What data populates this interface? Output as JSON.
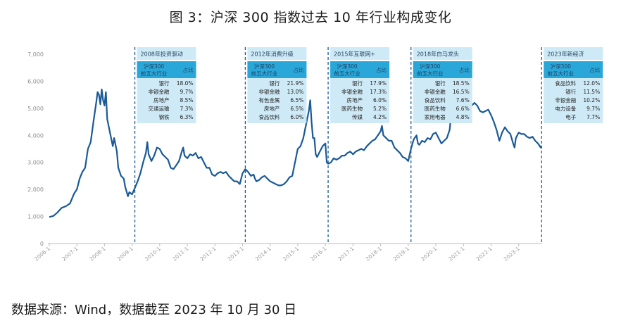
{
  "title": "图 3：沪深 300 指数过去 10 年行业构成变化",
  "source": "数据来源：Wind，数据截至 2023 年 10 月 30 日",
  "colors": {
    "line": "#1a5a96",
    "box_fill": "#cfeaf7",
    "box_header": "#2aa7d9",
    "divider": "#1a5a96"
  },
  "chart_data": {
    "type": "line",
    "y_ticks": [
      "0",
      "1,000",
      "2,000",
      "3,000",
      "4,000",
      "5,000",
      "6,000",
      "7,000"
    ],
    "ylim": [
      0,
      7000
    ],
    "x_ticks": [
      "2006-1",
      "2007-1",
      "2008-1",
      "2009-1",
      "2010-1",
      "2011-1",
      "2012-1",
      "2013-1",
      "2014-1",
      "2015-1",
      "2016-1",
      "2017-1",
      "2018-1",
      "2019-1",
      "2020-1",
      "2021-1",
      "2022-1",
      "2023-1"
    ],
    "xlim": [
      2005.95,
      2023.85
    ],
    "series": [
      {
        "points": [
          [
            2006.0,
            980
          ],
          [
            2006.15,
            1020
          ],
          [
            2006.3,
            1150
          ],
          [
            2006.45,
            1320
          ],
          [
            2006.6,
            1380
          ],
          [
            2006.75,
            1480
          ],
          [
            2006.9,
            1850
          ],
          [
            2007.0,
            2000
          ],
          [
            2007.1,
            2400
          ],
          [
            2007.2,
            2650
          ],
          [
            2007.3,
            2800
          ],
          [
            2007.4,
            3500
          ],
          [
            2007.5,
            3750
          ],
          [
            2007.6,
            4500
          ],
          [
            2007.7,
            5200
          ],
          [
            2007.75,
            5600
          ],
          [
            2007.8,
            5500
          ],
          [
            2007.85,
            5150
          ],
          [
            2007.9,
            5700
          ],
          [
            2007.95,
            5300
          ],
          [
            2008.0,
            5100
          ],
          [
            2008.05,
            5600
          ],
          [
            2008.1,
            4600
          ],
          [
            2008.2,
            4100
          ],
          [
            2008.3,
            3600
          ],
          [
            2008.35,
            3900
          ],
          [
            2008.45,
            3400
          ],
          [
            2008.5,
            2800
          ],
          [
            2008.6,
            2500
          ],
          [
            2008.7,
            2400
          ],
          [
            2008.75,
            2100
          ],
          [
            2008.85,
            1750
          ],
          [
            2008.9,
            1900
          ],
          [
            2009.0,
            1820
          ],
          [
            2009.1,
            2050
          ],
          [
            2009.2,
            2300
          ],
          [
            2009.3,
            2600
          ],
          [
            2009.4,
            3000
          ],
          [
            2009.5,
            3350
          ],
          [
            2009.55,
            3750
          ],
          [
            2009.6,
            3300
          ],
          [
            2009.7,
            3050
          ],
          [
            2009.8,
            3250
          ],
          [
            2009.9,
            3550
          ],
          [
            2010.0,
            3500
          ],
          [
            2010.1,
            3300
          ],
          [
            2010.2,
            3200
          ],
          [
            2010.3,
            3100
          ],
          [
            2010.4,
            2800
          ],
          [
            2010.5,
            2750
          ],
          [
            2010.6,
            2900
          ],
          [
            2010.7,
            3050
          ],
          [
            2010.8,
            3400
          ],
          [
            2010.85,
            3550
          ],
          [
            2010.9,
            3250
          ],
          [
            2011.0,
            3150
          ],
          [
            2011.1,
            3300
          ],
          [
            2011.2,
            3250
          ],
          [
            2011.3,
            3350
          ],
          [
            2011.4,
            3150
          ],
          [
            2011.5,
            3200
          ],
          [
            2011.6,
            3000
          ],
          [
            2011.7,
            2800
          ],
          [
            2011.8,
            2800
          ],
          [
            2011.9,
            2550
          ],
          [
            2012.0,
            2500
          ],
          [
            2012.1,
            2600
          ],
          [
            2012.2,
            2650
          ],
          [
            2012.3,
            2600
          ],
          [
            2012.4,
            2650
          ],
          [
            2012.5,
            2500
          ],
          [
            2012.6,
            2400
          ],
          [
            2012.7,
            2300
          ],
          [
            2012.8,
            2300
          ],
          [
            2012.9,
            2200
          ],
          [
            2013.0,
            2600
          ],
          [
            2013.1,
            2750
          ],
          [
            2013.2,
            2650
          ],
          [
            2013.3,
            2500
          ],
          [
            2013.4,
            2550
          ],
          [
            2013.45,
            2400
          ],
          [
            2013.5,
            2300
          ],
          [
            2013.6,
            2350
          ],
          [
            2013.7,
            2450
          ],
          [
            2013.8,
            2500
          ],
          [
            2013.9,
            2400
          ],
          [
            2014.0,
            2300
          ],
          [
            2014.1,
            2250
          ],
          [
            2014.2,
            2200
          ],
          [
            2014.3,
            2150
          ],
          [
            2014.4,
            2150
          ],
          [
            2014.5,
            2200
          ],
          [
            2014.6,
            2300
          ],
          [
            2014.7,
            2450
          ],
          [
            2014.8,
            2500
          ],
          [
            2014.9,
            3000
          ],
          [
            2015.0,
            3500
          ],
          [
            2015.1,
            3600
          ],
          [
            2015.2,
            3900
          ],
          [
            2015.3,
            4400
          ],
          [
            2015.4,
            4900
          ],
          [
            2015.45,
            5300
          ],
          [
            2015.5,
            4500
          ],
          [
            2015.55,
            3900
          ],
          [
            2015.6,
            3900
          ],
          [
            2015.65,
            3300
          ],
          [
            2015.7,
            3200
          ],
          [
            2015.8,
            3400
          ],
          [
            2015.9,
            3600
          ],
          [
            2016.0,
            3700
          ],
          [
            2016.05,
            3000
          ],
          [
            2016.1,
            2950
          ],
          [
            2016.2,
            3000
          ],
          [
            2016.3,
            3150
          ],
          [
            2016.4,
            3100
          ],
          [
            2016.5,
            3150
          ],
          [
            2016.6,
            3250
          ],
          [
            2016.7,
            3250
          ],
          [
            2016.8,
            3350
          ],
          [
            2016.9,
            3400
          ],
          [
            2017.0,
            3300
          ],
          [
            2017.1,
            3400
          ],
          [
            2017.2,
            3450
          ],
          [
            2017.3,
            3500
          ],
          [
            2017.4,
            3450
          ],
          [
            2017.5,
            3600
          ],
          [
            2017.6,
            3700
          ],
          [
            2017.7,
            3800
          ],
          [
            2017.8,
            3850
          ],
          [
            2017.9,
            4000
          ],
          [
            2018.0,
            4150
          ],
          [
            2018.05,
            4350
          ],
          [
            2018.1,
            4000
          ],
          [
            2018.2,
            3900
          ],
          [
            2018.3,
            3800
          ],
          [
            2018.4,
            3800
          ],
          [
            2018.5,
            3550
          ],
          [
            2018.6,
            3450
          ],
          [
            2018.7,
            3350
          ],
          [
            2018.8,
            3200
          ],
          [
            2018.9,
            3150
          ],
          [
            2019.0,
            3050
          ],
          [
            2019.1,
            3500
          ],
          [
            2019.2,
            3850
          ],
          [
            2019.3,
            4000
          ],
          [
            2019.35,
            3700
          ],
          [
            2019.4,
            3650
          ],
          [
            2019.5,
            3800
          ],
          [
            2019.6,
            3750
          ],
          [
            2019.7,
            3900
          ],
          [
            2019.8,
            3850
          ],
          [
            2019.9,
            4050
          ],
          [
            2020.0,
            4100
          ],
          [
            2020.1,
            3900
          ],
          [
            2020.2,
            3700
          ],
          [
            2020.3,
            3800
          ],
          [
            2020.4,
            3900
          ],
          [
            2020.5,
            4200
          ],
          [
            2020.55,
            4700
          ],
          [
            2020.6,
            4600
          ],
          [
            2020.7,
            4650
          ],
          [
            2020.8,
            4800
          ],
          [
            2020.9,
            5000
          ],
          [
            2021.0,
            5300
          ],
          [
            2021.05,
            5700
          ],
          [
            2021.1,
            5300
          ],
          [
            2021.2,
            5000
          ],
          [
            2021.3,
            5100
          ],
          [
            2021.4,
            5200
          ],
          [
            2021.5,
            5100
          ],
          [
            2021.6,
            4900
          ],
          [
            2021.7,
            4850
          ],
          [
            2021.8,
            4900
          ],
          [
            2021.9,
            4950
          ],
          [
            2022.0,
            4750
          ],
          [
            2022.1,
            4500
          ],
          [
            2022.2,
            4200
          ],
          [
            2022.3,
            3800
          ],
          [
            2022.4,
            4100
          ],
          [
            2022.5,
            4300
          ],
          [
            2022.6,
            4150
          ],
          [
            2022.7,
            4050
          ],
          [
            2022.8,
            3700
          ],
          [
            2022.85,
            3550
          ],
          [
            2022.9,
            3900
          ],
          [
            2023.0,
            4100
          ],
          [
            2023.1,
            4050
          ],
          [
            2023.2,
            4050
          ],
          [
            2023.3,
            3950
          ],
          [
            2023.4,
            3900
          ],
          [
            2023.5,
            3950
          ],
          [
            2023.6,
            3800
          ],
          [
            2023.7,
            3700
          ],
          [
            2023.8,
            3550
          ],
          [
            2023.82,
            3620
          ]
        ]
      }
    ],
    "dividers": [
      2009.1,
      2013.1,
      2016.1,
      2019.1,
      2023.83
    ],
    "boxes": [
      {
        "title": "2008年投资驱动",
        "header": [
          "沪深300",
          "前五大行业",
          "占比"
        ],
        "rows": [
          [
            "银行",
            "18.0%"
          ],
          [
            "非银金融",
            "9.7%"
          ],
          [
            "房地产",
            "8.5%"
          ],
          [
            "交通运输",
            "7.3%"
          ],
          [
            "钢铁",
            "6.3%"
          ]
        ]
      },
      {
        "title": "2012年消费升级",
        "header": [
          "沪深300",
          "前五大行业",
          "占比"
        ],
        "rows": [
          [
            "银行",
            "21.9%"
          ],
          [
            "非银金融",
            "13.0%"
          ],
          [
            "有色金属",
            "6.5%"
          ],
          [
            "房地产",
            "6.5%"
          ],
          [
            "食品饮料",
            "6.0%"
          ]
        ]
      },
      {
        "title": "2015年互联网+",
        "header": [
          "沪深300",
          "前五大行业",
          "占比"
        ],
        "rows": [
          [
            "银行",
            "17.9%"
          ],
          [
            "非银金融",
            "17.3%"
          ],
          [
            "房地产",
            "6.0%"
          ],
          [
            "医药生物",
            "5.2%"
          ],
          [
            "传媒",
            "4.2%"
          ]
        ]
      },
      {
        "title": "2018年白马龙头",
        "header": [
          "沪深300",
          "前五大行业",
          "占比"
        ],
        "rows": [
          [
            "银行",
            "18.5%"
          ],
          [
            "非银金融",
            "16.5%"
          ],
          [
            "食品饮料",
            "7.6%"
          ],
          [
            "医药生物",
            "6.6%"
          ],
          [
            "家用电器",
            "4.8%"
          ]
        ]
      },
      {
        "title": "2023年新经济",
        "header": [
          "沪深300",
          "前五大行业",
          "占比"
        ],
        "rows": [
          [
            "食品饮料",
            "12.0%"
          ],
          [
            "银行",
            "11.5%"
          ],
          [
            "非银金融",
            "10.2%"
          ],
          [
            "电力设备",
            "9.7%"
          ],
          [
            "电子",
            "7.7%"
          ]
        ]
      }
    ]
  }
}
